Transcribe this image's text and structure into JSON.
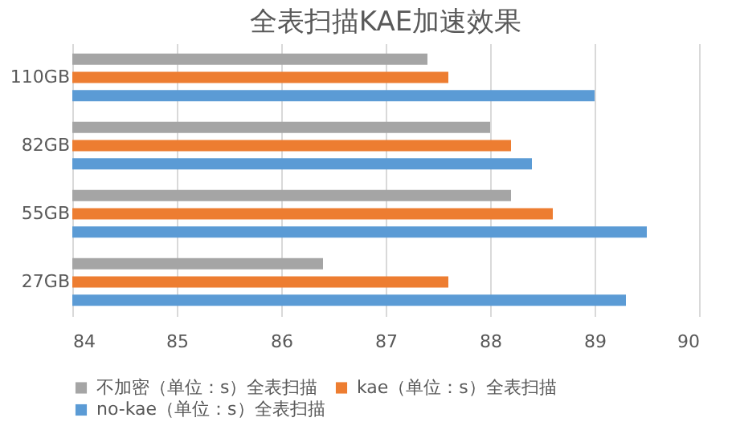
{
  "chart_data": {
    "type": "bar",
    "orientation": "horizontal",
    "title": "全表扫描KAE加速效果",
    "categories": [
      "110GB",
      "82GB",
      "55GB",
      "27GB"
    ],
    "series": [
      {
        "name": "不加密（单位：s）全表扫描",
        "color": "#a5a5a5",
        "values": [
          87.4,
          88.0,
          88.2,
          86.4
        ]
      },
      {
        "name": "kae（单位：s）全表扫描",
        "color": "#ed7d31",
        "values": [
          87.6,
          88.2,
          88.6,
          87.6
        ]
      },
      {
        "name": "no-kae（单位：s）全表扫描",
        "color": "#5b9bd5",
        "values": [
          89.0,
          88.4,
          89.5,
          89.3
        ]
      }
    ],
    "xlim": [
      84,
      90
    ],
    "xticks": [
      84,
      85,
      86,
      87,
      88,
      89,
      90
    ],
    "grid": "x",
    "legend": "bottom"
  }
}
